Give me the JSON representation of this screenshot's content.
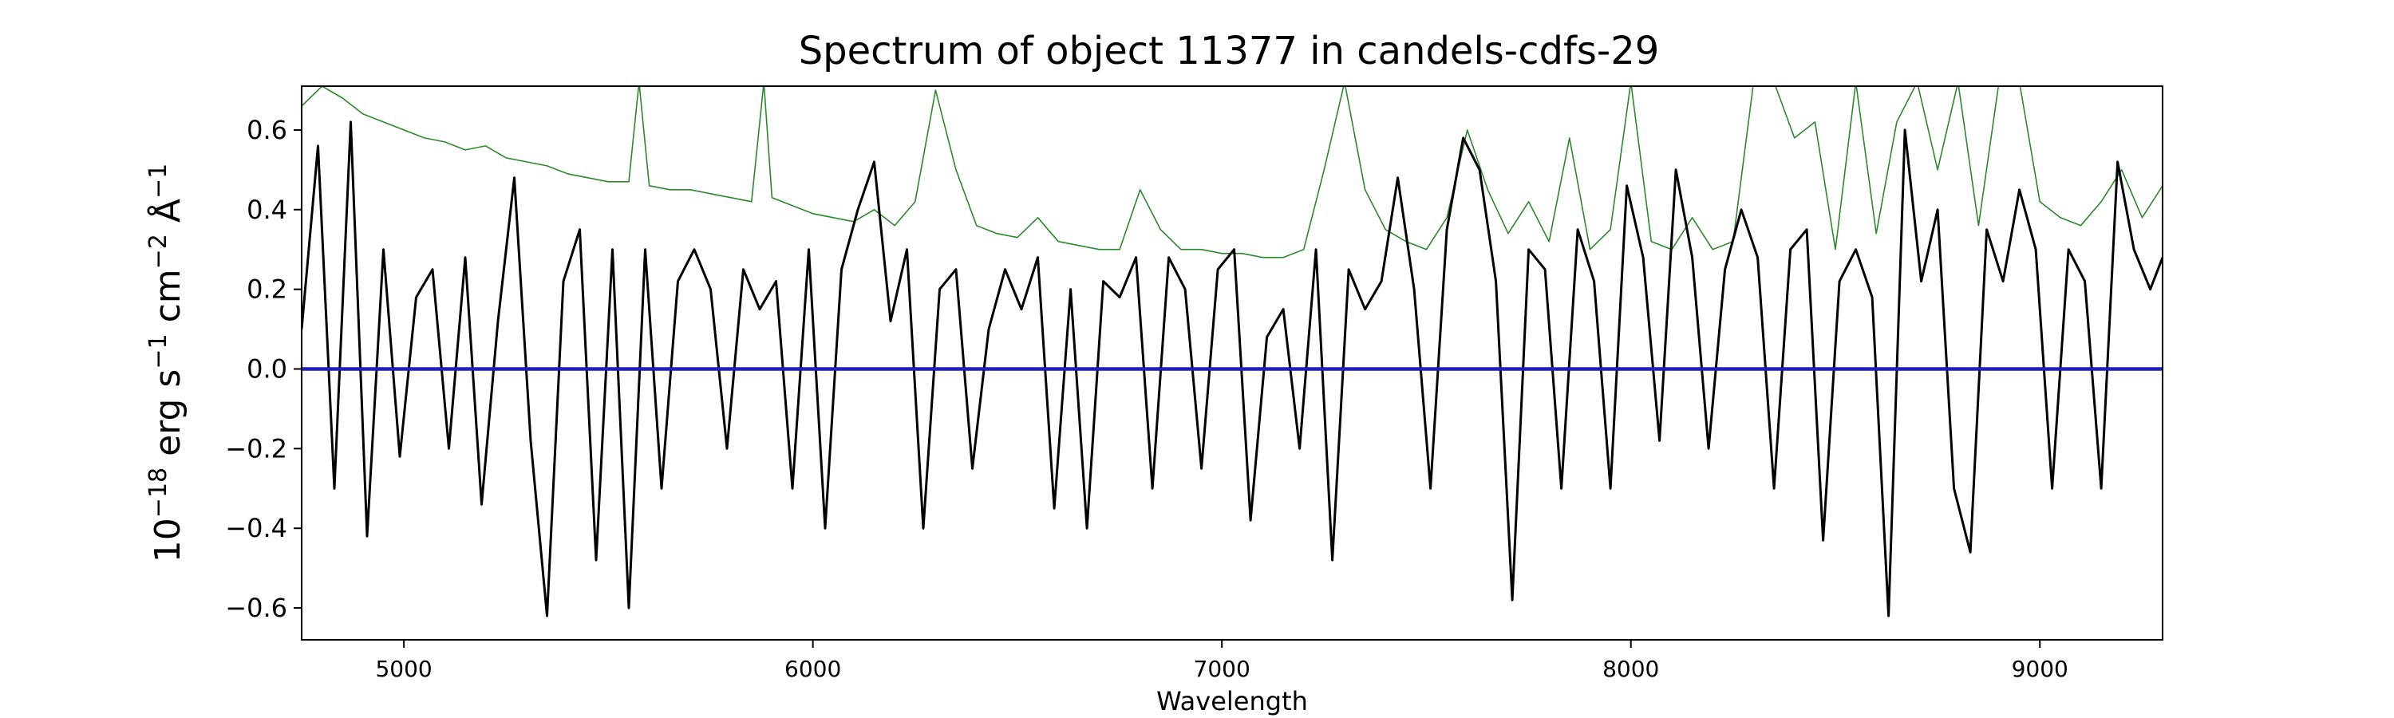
{
  "chart_data": {
    "type": "line",
    "title": "Spectrum of object 11377 in candels-cdfs-29",
    "xlabel": "Wavelength",
    "ylabel": {
      "base": "10",
      "exp1": "−18",
      "mid1": " erg s",
      "exp2": "−1",
      "mid2": " cm",
      "exp3": "−2",
      "mid3": " Å",
      "exp4": "−1"
    },
    "xlim": [
      4750,
      9300
    ],
    "ylim": [
      -0.68,
      0.71
    ],
    "xticks": [
      5000,
      6000,
      7000,
      8000,
      9000
    ],
    "yticks": [
      -0.6,
      -0.4,
      -0.2,
      0.0,
      0.2,
      0.4,
      0.6
    ],
    "ytick_labels": [
      "−0.6",
      "−0.4",
      "−0.2",
      "0.0",
      "0.2",
      "0.4",
      "0.6"
    ],
    "grid": false,
    "colors": {
      "flux": "#000000",
      "error": "#2a8a2a",
      "zero": "#1f1fbf"
    },
    "series": [
      {
        "role": "flux",
        "x": [
          4750,
          4790,
          4830,
          4870,
          4910,
          4950,
          4990,
          5030,
          5070,
          5110,
          5150,
          5190,
          5230,
          5270,
          5310,
          5350,
          5390,
          5430,
          5470,
          5510,
          5550,
          5590,
          5630,
          5670,
          5710,
          5750,
          5790,
          5830,
          5870,
          5910,
          5950,
          5990,
          6030,
          6070,
          6110,
          6150,
          6190,
          6230,
          6270,
          6310,
          6350,
          6390,
          6430,
          6470,
          6510,
          6550,
          6590,
          6630,
          6670,
          6710,
          6750,
          6790,
          6830,
          6870,
          6910,
          6950,
          6990,
          7030,
          7070,
          7110,
          7150,
          7190,
          7230,
          7270,
          7310,
          7350,
          7390,
          7430,
          7470,
          7510,
          7550,
          7590,
          7630,
          7670,
          7710,
          7750,
          7790,
          7830,
          7870,
          7910,
          7950,
          7990,
          8030,
          8070,
          8110,
          8150,
          8190,
          8230,
          8270,
          8310,
          8350,
          8390,
          8430,
          8470,
          8510,
          8550,
          8590,
          8630,
          8670,
          8710,
          8750,
          8790,
          8830,
          8870,
          8910,
          8950,
          8990,
          9030,
          9070,
          9110,
          9150,
          9190,
          9230,
          9270,
          9300
        ],
        "y": [
          0.1,
          0.56,
          -0.3,
          0.62,
          -0.42,
          0.3,
          -0.22,
          0.18,
          0.25,
          -0.2,
          0.28,
          -0.34,
          0.12,
          0.48,
          -0.18,
          -0.62,
          0.22,
          0.35,
          -0.48,
          0.3,
          -0.6,
          0.3,
          -0.3,
          0.22,
          0.3,
          0.2,
          -0.2,
          0.25,
          0.15,
          0.22,
          -0.3,
          0.3,
          -0.4,
          0.25,
          0.4,
          0.52,
          0.12,
          0.3,
          -0.4,
          0.2,
          0.25,
          -0.25,
          0.1,
          0.25,
          0.15,
          0.28,
          -0.35,
          0.2,
          -0.4,
          0.22,
          0.18,
          0.28,
          -0.3,
          0.28,
          0.2,
          -0.25,
          0.25,
          0.3,
          -0.38,
          0.08,
          0.15,
          -0.2,
          0.3,
          -0.48,
          0.25,
          0.15,
          0.22,
          0.48,
          0.2,
          -0.3,
          0.35,
          0.58,
          0.5,
          0.22,
          -0.58,
          0.3,
          0.25,
          -0.3,
          0.35,
          0.22,
          -0.3,
          0.46,
          0.28,
          -0.18,
          0.5,
          0.28,
          -0.2,
          0.25,
          0.4,
          0.28,
          -0.3,
          0.3,
          0.35,
          -0.43,
          0.22,
          0.3,
          0.18,
          -0.62,
          0.6,
          0.22,
          0.4,
          -0.3,
          -0.46,
          0.35,
          0.22,
          0.45,
          0.3,
          -0.3,
          0.3,
          0.22,
          -0.3,
          0.52,
          0.3,
          0.2,
          0.28
        ]
      },
      {
        "role": "error",
        "x": [
          4750,
          4800,
          4850,
          4900,
          4950,
          5000,
          5050,
          5100,
          5150,
          5200,
          5250,
          5300,
          5350,
          5400,
          5450,
          5500,
          5550,
          5575,
          5600,
          5650,
          5700,
          5750,
          5800,
          5850,
          5880,
          5900,
          5950,
          6000,
          6050,
          6100,
          6150,
          6200,
          6250,
          6300,
          6350,
          6400,
          6450,
          6500,
          6550,
          6600,
          6650,
          6700,
          6750,
          6800,
          6850,
          6900,
          6950,
          7000,
          7050,
          7100,
          7150,
          7200,
          7250,
          7300,
          7350,
          7400,
          7450,
          7500,
          7550,
          7600,
          7650,
          7700,
          7750,
          7800,
          7850,
          7900,
          7950,
          8000,
          8050,
          8100,
          8150,
          8200,
          8250,
          8300,
          8350,
          8400,
          8450,
          8500,
          8550,
          8600,
          8650,
          8700,
          8750,
          8800,
          8850,
          8900,
          8950,
          9000,
          9050,
          9100,
          9150,
          9200,
          9250,
          9300
        ],
        "y": [
          0.66,
          0.71,
          0.68,
          0.64,
          0.62,
          0.6,
          0.58,
          0.57,
          0.55,
          0.56,
          0.53,
          0.52,
          0.51,
          0.49,
          0.48,
          0.47,
          0.47,
          0.72,
          0.46,
          0.45,
          0.45,
          0.44,
          0.43,
          0.42,
          0.72,
          0.43,
          0.41,
          0.39,
          0.38,
          0.37,
          0.4,
          0.36,
          0.42,
          0.7,
          0.5,
          0.36,
          0.34,
          0.33,
          0.38,
          0.32,
          0.31,
          0.3,
          0.3,
          0.45,
          0.35,
          0.3,
          0.3,
          0.29,
          0.29,
          0.28,
          0.28,
          0.3,
          0.5,
          0.72,
          0.45,
          0.35,
          0.32,
          0.3,
          0.38,
          0.6,
          0.45,
          0.34,
          0.42,
          0.32,
          0.58,
          0.3,
          0.35,
          0.72,
          0.32,
          0.3,
          0.38,
          0.3,
          0.32,
          0.72,
          0.72,
          0.58,
          0.62,
          0.3,
          0.72,
          0.34,
          0.62,
          0.72,
          0.5,
          0.72,
          0.36,
          0.72,
          0.72,
          0.42,
          0.38,
          0.36,
          0.42,
          0.5,
          0.38,
          0.46
        ]
      },
      {
        "role": "zero",
        "x": [
          4750,
          9300
        ],
        "y": [
          0,
          0
        ]
      }
    ]
  }
}
